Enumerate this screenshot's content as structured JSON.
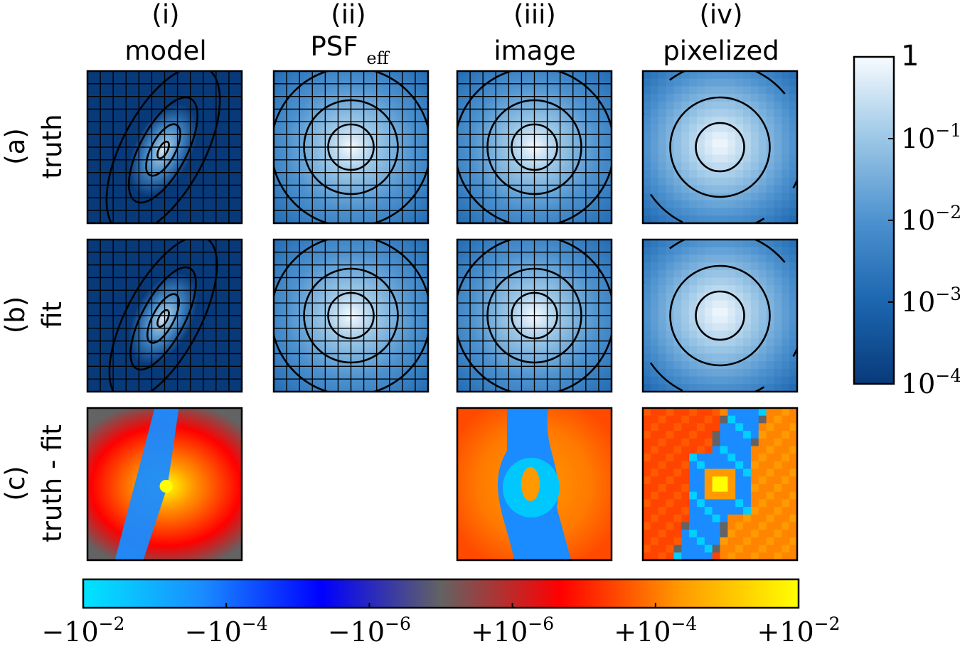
{
  "chart_data": {
    "type": "heatmap",
    "columns": [
      {
        "index": "(i)",
        "name": "model"
      },
      {
        "index": "(ii)",
        "name": "PSF",
        "subscript": "eff"
      },
      {
        "index": "(iii)",
        "name": "image"
      },
      {
        "index": "(iv)",
        "name": "pixelized"
      }
    ],
    "rows": [
      {
        "index": "(a)",
        "name": "truth"
      },
      {
        "index": "(b)",
        "name": "fit"
      },
      {
        "index": "(c)",
        "name": "truth - fit"
      }
    ],
    "residual_panels_shown": [
      "model",
      "image",
      "pixelized"
    ],
    "intensity_colorbar": {
      "scale": "log",
      "range": [
        0.0001,
        1
      ],
      "ticks": [
        {
          "value": 1,
          "label": "1"
        },
        {
          "value": 0.1,
          "base": "10",
          "exp": "−1"
        },
        {
          "value": 0.01,
          "base": "10",
          "exp": "−2"
        },
        {
          "value": 0.001,
          "base": "10",
          "exp": "−3"
        },
        {
          "value": 0.0001,
          "base": "10",
          "exp": "−4"
        }
      ],
      "colors": [
        "#083a7a",
        "#1c66b0",
        "#4d92cf",
        "#9cc7e6",
        "#f7fbff"
      ]
    },
    "residual_colorbar": {
      "scale": "symlog",
      "range": [
        -0.01,
        0.01
      ],
      "ticks": [
        {
          "value": -0.01,
          "sign": "−",
          "base": "10",
          "exp": "−2"
        },
        {
          "value": -0.0001,
          "sign": "−",
          "base": "10",
          "exp": "−4"
        },
        {
          "value": -1e-06,
          "sign": "−",
          "base": "10",
          "exp": "−6"
        },
        {
          "value": 1e-06,
          "sign": "+",
          "base": "10",
          "exp": "−6"
        },
        {
          "value": 0.0001,
          "sign": "+",
          "base": "10",
          "exp": "−4"
        },
        {
          "value": 0.01,
          "sign": "+",
          "base": "10",
          "exp": "−2"
        }
      ],
      "colors": [
        "#00e5ff",
        "#1a8cff",
        "#0000ff",
        "#636363",
        "#ff0000",
        "#ff9900",
        "#ffff00"
      ]
    }
  }
}
